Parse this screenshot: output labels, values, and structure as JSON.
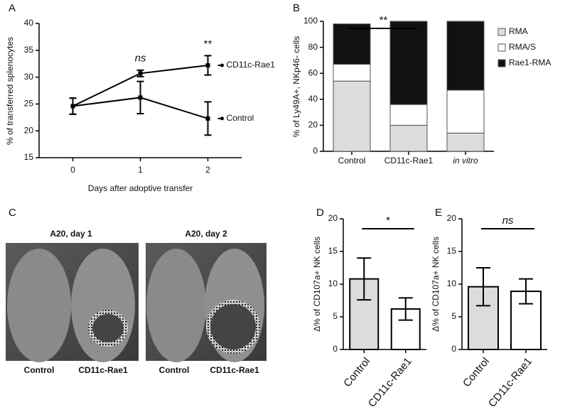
{
  "chart_data": [
    {
      "type": "line",
      "panel_label": "A",
      "ylabel": "% of transferred splenocytes",
      "xlabel": "Days after adoptive transfer",
      "x": [
        0,
        1,
        2
      ],
      "xlim": [
        -0.5,
        2.5
      ],
      "xticks": [
        0,
        1,
        2
      ],
      "ylim": [
        15,
        40
      ],
      "yticks": [
        15,
        20,
        25,
        30,
        35,
        40
      ],
      "series": [
        {
          "name": "CD11c-Rae1",
          "color": "#000000",
          "values": [
            24.6,
            30.7,
            32.2
          ],
          "errors": [
            1.5,
            0.6,
            1.8
          ]
        },
        {
          "name": "Control",
          "color": "#000000",
          "values": [
            24.6,
            26.2,
            22.3
          ],
          "errors": [
            1.5,
            3.0,
            3.1
          ]
        }
      ],
      "annotations": [
        {
          "text": "ns",
          "x": 1
        },
        {
          "text": "**",
          "x": 2
        }
      ]
    },
    {
      "type": "stacked_bar",
      "panel_label": "B",
      "ylabel": "% of Ly49A+, NKp46- cells",
      "categories": [
        "Control",
        "CD11c-Rae1",
        "in vitro"
      ],
      "ylim": [
        0,
        100
      ],
      "yticks": [
        0,
        20,
        40,
        60,
        80,
        100
      ],
      "series": [
        {
          "name": "RMA",
          "color": "#dcdcdc",
          "values": [
            54,
            20,
            14
          ]
        },
        {
          "name": "RMA/S",
          "color": "#ffffff",
          "values": [
            13,
            16,
            33
          ]
        },
        {
          "name": "Rae1-RMA",
          "color": "#111111",
          "values": [
            31,
            64,
            53
          ]
        }
      ],
      "legend": "right",
      "significance": "**"
    },
    {
      "type": "bar",
      "panel_label": "D",
      "ylabel": "Δ% of CD107a+ NK cells",
      "categories": [
        "Control",
        "CD11c-Rae1"
      ],
      "values": [
        10.8,
        6.2
      ],
      "errors": [
        3.2,
        1.7
      ],
      "colors": [
        "#dcdcdc",
        "#ffffff"
      ],
      "ylim": [
        0,
        20
      ],
      "yticks": [
        0,
        5,
        10,
        15,
        20
      ],
      "significance": "*"
    },
    {
      "type": "bar",
      "panel_label": "E",
      "ylabel": "Δ% of CD107a+ NK cells",
      "categories": [
        "Control",
        "CD11c-Rae1"
      ],
      "values": [
        9.6,
        8.9
      ],
      "errors": [
        2.9,
        1.9
      ],
      "colors": [
        "#dcdcdc",
        "#ffffff"
      ],
      "ylim": [
        0,
        20
      ],
      "yticks": [
        0,
        5,
        10,
        15,
        20
      ],
      "significance": "ns"
    }
  ],
  "panel_c": {
    "panel_label": "C",
    "images": [
      {
        "title": "A20, day 1",
        "labels": [
          "Control",
          "CD11c-Rae1"
        ]
      },
      {
        "title": "A20, day 2",
        "labels": [
          "Control",
          "CD11c-Rae1"
        ]
      }
    ]
  }
}
